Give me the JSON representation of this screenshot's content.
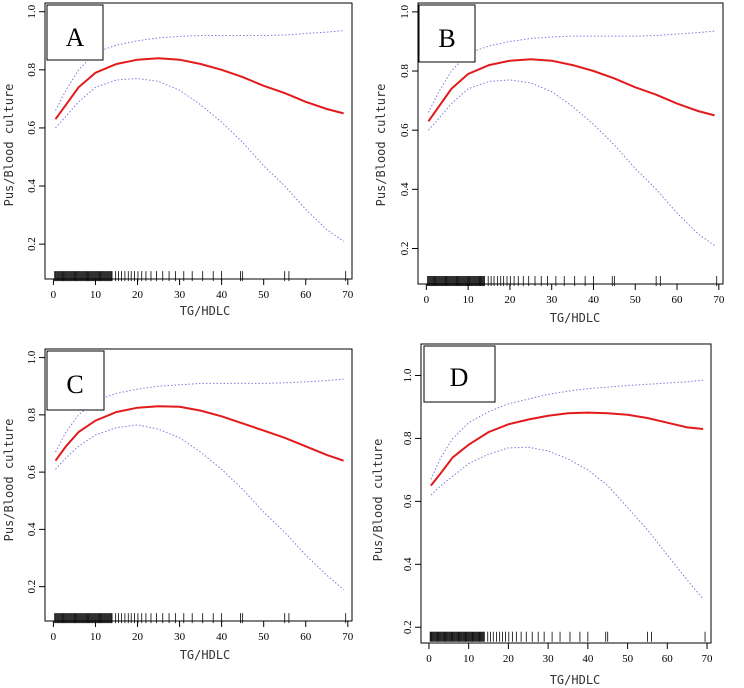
{
  "figure": {
    "panels": [
      "A",
      "B",
      "C",
      "D"
    ],
    "colors": {
      "fit": "#e31a1c",
      "ci": "#7b7bdb",
      "axis": "#000000",
      "rug": "#000000"
    }
  },
  "chart_data": [
    {
      "panel": "A",
      "type": "line",
      "xlabel": "TG/HDLC",
      "ylabel": "Pus/Blood culture",
      "xlim": [
        -2,
        71
      ],
      "ylim": [
        0.08,
        1.03
      ],
      "xticks": [
        0,
        10,
        20,
        30,
        40,
        50,
        60,
        70
      ],
      "yticks": [
        0.2,
        0.4,
        0.6,
        0.8,
        1.0
      ],
      "ytick_labels": [
        "0.2",
        "0.4",
        "0.6",
        "0.8",
        "1.0"
      ],
      "rug_y": 0.09,
      "series": [
        {
          "name": "fit",
          "x": [
            0.5,
            3,
            6,
            10,
            15,
            20,
            25,
            30,
            35,
            40,
            45,
            50,
            55,
            60,
            65,
            69
          ],
          "y": [
            0.63,
            0.68,
            0.74,
            0.79,
            0.82,
            0.835,
            0.84,
            0.835,
            0.82,
            0.8,
            0.775,
            0.745,
            0.72,
            0.69,
            0.665,
            0.65
          ]
        },
        {
          "name": "upper",
          "x": [
            0.5,
            3,
            6,
            10,
            15,
            20,
            25,
            30,
            35,
            40,
            45,
            50,
            55,
            60,
            65,
            69
          ],
          "y": [
            0.66,
            0.73,
            0.8,
            0.86,
            0.885,
            0.9,
            0.91,
            0.915,
            0.918,
            0.918,
            0.918,
            0.918,
            0.92,
            0.925,
            0.93,
            0.935
          ]
        },
        {
          "name": "lower",
          "x": [
            0.5,
            3,
            6,
            10,
            15,
            20,
            25,
            30,
            35,
            40,
            45,
            50,
            55,
            60,
            65,
            69
          ],
          "y": [
            0.6,
            0.64,
            0.69,
            0.74,
            0.765,
            0.77,
            0.76,
            0.73,
            0.68,
            0.62,
            0.55,
            0.47,
            0.4,
            0.32,
            0.25,
            0.21
          ]
        }
      ]
    },
    {
      "panel": "B",
      "type": "line",
      "xlabel": "TG/HDLC",
      "ylabel": "Pus/Blood culture",
      "xlim": [
        -2,
        71
      ],
      "ylim": [
        0.08,
        1.03
      ],
      "xticks": [
        0,
        10,
        20,
        30,
        40,
        50,
        60,
        70
      ],
      "yticks": [
        0.2,
        0.4,
        0.6,
        0.8,
        1.0
      ],
      "ytick_labels": [
        "0.2",
        "0.4",
        "0.6",
        "0.8",
        "1.0"
      ],
      "rug_y": 0.09,
      "series": [
        {
          "name": "fit",
          "x": [
            0.5,
            3,
            6,
            10,
            15,
            20,
            25,
            30,
            35,
            40,
            45,
            50,
            55,
            60,
            65,
            69
          ],
          "y": [
            0.63,
            0.68,
            0.74,
            0.79,
            0.82,
            0.835,
            0.84,
            0.835,
            0.82,
            0.8,
            0.775,
            0.745,
            0.72,
            0.69,
            0.665,
            0.65
          ]
        },
        {
          "name": "upper",
          "x": [
            0.5,
            3,
            6,
            10,
            15,
            20,
            25,
            30,
            35,
            40,
            45,
            50,
            55,
            60,
            65,
            69
          ],
          "y": [
            0.66,
            0.73,
            0.8,
            0.86,
            0.885,
            0.9,
            0.91,
            0.915,
            0.918,
            0.918,
            0.918,
            0.918,
            0.92,
            0.925,
            0.93,
            0.935
          ]
        },
        {
          "name": "lower",
          "x": [
            0.5,
            3,
            6,
            10,
            15,
            20,
            25,
            30,
            35,
            40,
            45,
            50,
            55,
            60,
            65,
            69
          ],
          "y": [
            0.6,
            0.64,
            0.69,
            0.74,
            0.765,
            0.77,
            0.76,
            0.73,
            0.68,
            0.62,
            0.55,
            0.47,
            0.4,
            0.32,
            0.25,
            0.21
          ]
        }
      ]
    },
    {
      "panel": "C",
      "type": "line",
      "xlabel": "TG/HDLC",
      "ylabel": "Pus/Blood culture",
      "xlim": [
        -2,
        71
      ],
      "ylim": [
        0.08,
        1.03
      ],
      "xticks": [
        0,
        10,
        20,
        30,
        40,
        50,
        60,
        70
      ],
      "yticks": [
        0.2,
        0.4,
        0.6,
        0.8,
        1.0
      ],
      "ytick_labels": [
        "0.2",
        "0.4",
        "0.6",
        "0.8",
        "1.0"
      ],
      "rug_y": 0.09,
      "series": [
        {
          "name": "fit",
          "x": [
            0.5,
            3,
            6,
            10,
            15,
            20,
            25,
            30,
            35,
            40,
            45,
            50,
            55,
            60,
            65,
            69
          ],
          "y": [
            0.64,
            0.69,
            0.74,
            0.78,
            0.81,
            0.825,
            0.83,
            0.828,
            0.815,
            0.795,
            0.77,
            0.745,
            0.72,
            0.69,
            0.66,
            0.64
          ]
        },
        {
          "name": "upper",
          "x": [
            0.5,
            3,
            6,
            10,
            15,
            20,
            25,
            30,
            35,
            40,
            45,
            50,
            55,
            60,
            65,
            69
          ],
          "y": [
            0.67,
            0.74,
            0.8,
            0.85,
            0.875,
            0.89,
            0.9,
            0.905,
            0.91,
            0.91,
            0.91,
            0.91,
            0.912,
            0.915,
            0.92,
            0.925
          ]
        },
        {
          "name": "lower",
          "x": [
            0.5,
            3,
            6,
            10,
            15,
            20,
            25,
            30,
            35,
            40,
            45,
            50,
            55,
            60,
            65,
            69
          ],
          "y": [
            0.61,
            0.65,
            0.69,
            0.73,
            0.755,
            0.765,
            0.75,
            0.72,
            0.67,
            0.61,
            0.54,
            0.46,
            0.39,
            0.31,
            0.24,
            0.19
          ]
        }
      ]
    },
    {
      "panel": "D",
      "type": "line",
      "xlabel": "TG/HDLC",
      "ylabel": "Pus/Blood culture",
      "xlim": [
        -2,
        71
      ],
      "ylim": [
        0.15,
        1.1
      ],
      "xticks": [
        0,
        10,
        20,
        30,
        40,
        50,
        60,
        70
      ],
      "yticks": [
        0.2,
        0.4,
        0.6,
        0.8,
        1.0
      ],
      "ytick_labels": [
        "0.2",
        "0.4",
        "0.6",
        "0.8",
        "1.0"
      ],
      "rug_y": 0.17,
      "series": [
        {
          "name": "fit",
          "x": [
            0.5,
            3,
            6,
            10,
            15,
            20,
            25,
            30,
            35,
            40,
            45,
            50,
            55,
            60,
            65,
            69
          ],
          "y": [
            0.65,
            0.69,
            0.74,
            0.78,
            0.82,
            0.845,
            0.86,
            0.872,
            0.88,
            0.882,
            0.88,
            0.875,
            0.865,
            0.85,
            0.835,
            0.83
          ]
        },
        {
          "name": "upper",
          "x": [
            0.5,
            3,
            6,
            10,
            15,
            20,
            25,
            30,
            35,
            40,
            45,
            50,
            55,
            60,
            65,
            69
          ],
          "y": [
            0.67,
            0.74,
            0.8,
            0.85,
            0.885,
            0.91,
            0.925,
            0.94,
            0.95,
            0.958,
            0.963,
            0.968,
            0.972,
            0.976,
            0.98,
            0.985
          ]
        },
        {
          "name": "lower",
          "x": [
            0.5,
            3,
            6,
            10,
            15,
            20,
            25,
            30,
            35,
            40,
            45,
            50,
            55,
            60,
            65,
            69
          ],
          "y": [
            0.62,
            0.65,
            0.68,
            0.72,
            0.75,
            0.77,
            0.772,
            0.76,
            0.735,
            0.7,
            0.65,
            0.58,
            0.51,
            0.43,
            0.35,
            0.29
          ]
        }
      ]
    }
  ]
}
